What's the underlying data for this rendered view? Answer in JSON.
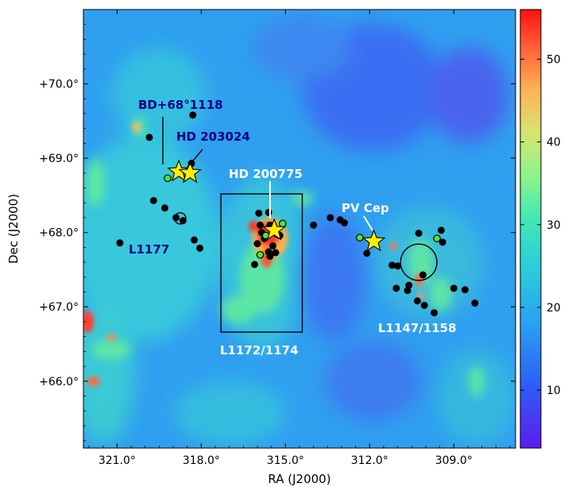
{
  "chart_data": {
    "type": "heatmap",
    "xlabel": "RA (J2000)",
    "ylabel": "Dec (J2000)",
    "xlim": [
      322.2,
      306.8
    ],
    "ylim": [
      65.1,
      71.0
    ],
    "x_ticks": [
      "321.0°",
      "318.0°",
      "315.0°",
      "312.0°",
      "309.0°"
    ],
    "x_tick_values": [
      321.0,
      318.0,
      315.0,
      312.0,
      309.0
    ],
    "y_ticks": [
      "+66.0°",
      "+67.0°",
      "+68.0°",
      "+69.0°",
      "+70.0°"
    ],
    "y_tick_values": [
      66.0,
      67.0,
      68.0,
      69.0,
      70.0
    ],
    "colorbar": {
      "min": 3,
      "max": 56,
      "ticks": [
        10,
        20,
        30,
        40,
        50
      ]
    },
    "colors": {
      "low": "#5b1cf0",
      "mid": "#2fd0c0",
      "high": "#ff1a1a",
      "text_dark": "#000080",
      "text_light": "#ffffff",
      "star": "#ffee00"
    },
    "stars": [
      {
        "name": "BD+68°1118",
        "ra": 318.8,
        "dec": 68.82
      },
      {
        "name": "HD 203024",
        "ra": 318.4,
        "dec": 68.8
      },
      {
        "name": "HD 200775",
        "ra": 315.4,
        "dec": 68.03
      },
      {
        "name": "PV Cep",
        "ra": 311.85,
        "dec": 67.88
      }
    ],
    "clouds": [
      "L1177",
      "L1172/1174",
      "L1147/1158"
    ],
    "black_points": [
      [
        319.85,
        69.28
      ],
      [
        318.3,
        69.58
      ],
      [
        319.7,
        68.43
      ],
      [
        319.3,
        68.33
      ],
      [
        318.9,
        68.2
      ],
      [
        318.65,
        68.16
      ],
      [
        318.25,
        67.9
      ],
      [
        318.05,
        67.79
      ],
      [
        320.9,
        67.86
      ],
      [
        318.35,
        68.93
      ],
      [
        315.95,
        68.26
      ],
      [
        315.6,
        68.27
      ],
      [
        315.9,
        68.1
      ],
      [
        315.55,
        68.1
      ],
      [
        315.2,
        67.96
      ],
      [
        315.75,
        67.92
      ],
      [
        316.0,
        67.85
      ],
      [
        315.45,
        67.82
      ],
      [
        315.6,
        67.74
      ],
      [
        315.35,
        67.73
      ],
      [
        315.55,
        67.68
      ],
      [
        316.1,
        67.57
      ],
      [
        315.85,
        68.0
      ],
      [
        314.0,
        68.1
      ],
      [
        313.4,
        68.2
      ],
      [
        313.05,
        68.17
      ],
      [
        312.9,
        68.13
      ],
      [
        312.1,
        67.72
      ],
      [
        310.25,
        67.99
      ],
      [
        309.45,
        68.03
      ],
      [
        309.4,
        67.87
      ],
      [
        311.0,
        67.55
      ],
      [
        311.2,
        67.56
      ],
      [
        310.1,
        67.43
      ],
      [
        310.6,
        67.29
      ],
      [
        310.65,
        67.22
      ],
      [
        311.05,
        67.25
      ],
      [
        310.3,
        67.08
      ],
      [
        310.05,
        67.02
      ],
      [
        309.7,
        66.92
      ],
      [
        309.0,
        67.25
      ],
      [
        308.6,
        67.23
      ],
      [
        308.25,
        67.05
      ]
    ],
    "green_points": [
      [
        319.2,
        68.73
      ],
      [
        315.1,
        68.12
      ],
      [
        315.3,
        67.98
      ],
      [
        315.7,
        67.96
      ],
      [
        315.9,
        67.7
      ],
      [
        312.35,
        67.93
      ],
      [
        309.6,
        67.92
      ]
    ],
    "markup": {
      "l1177_circle": {
        "ra": 318.75,
        "dec": 68.19,
        "r_deg": 0.2
      },
      "l1172_box": {
        "ra": [
          317.3,
          314.4
        ],
        "dec": [
          66.66,
          68.52
        ]
      },
      "l1147_circle": {
        "ra": 310.25,
        "dec": 67.6,
        "r_deg": 0.72
      }
    }
  },
  "labels": {
    "bd": "BD+68°1118",
    "hd203": "HD 203024",
    "hd200": "HD 200775",
    "pvcep": "PV Cep",
    "l1177": "L1177",
    "l1172": "L1172/1174",
    "l1147": "L1147/1158"
  },
  "axes": {
    "xlabel": "RA (J2000)",
    "ylabel": "Dec (J2000)"
  }
}
